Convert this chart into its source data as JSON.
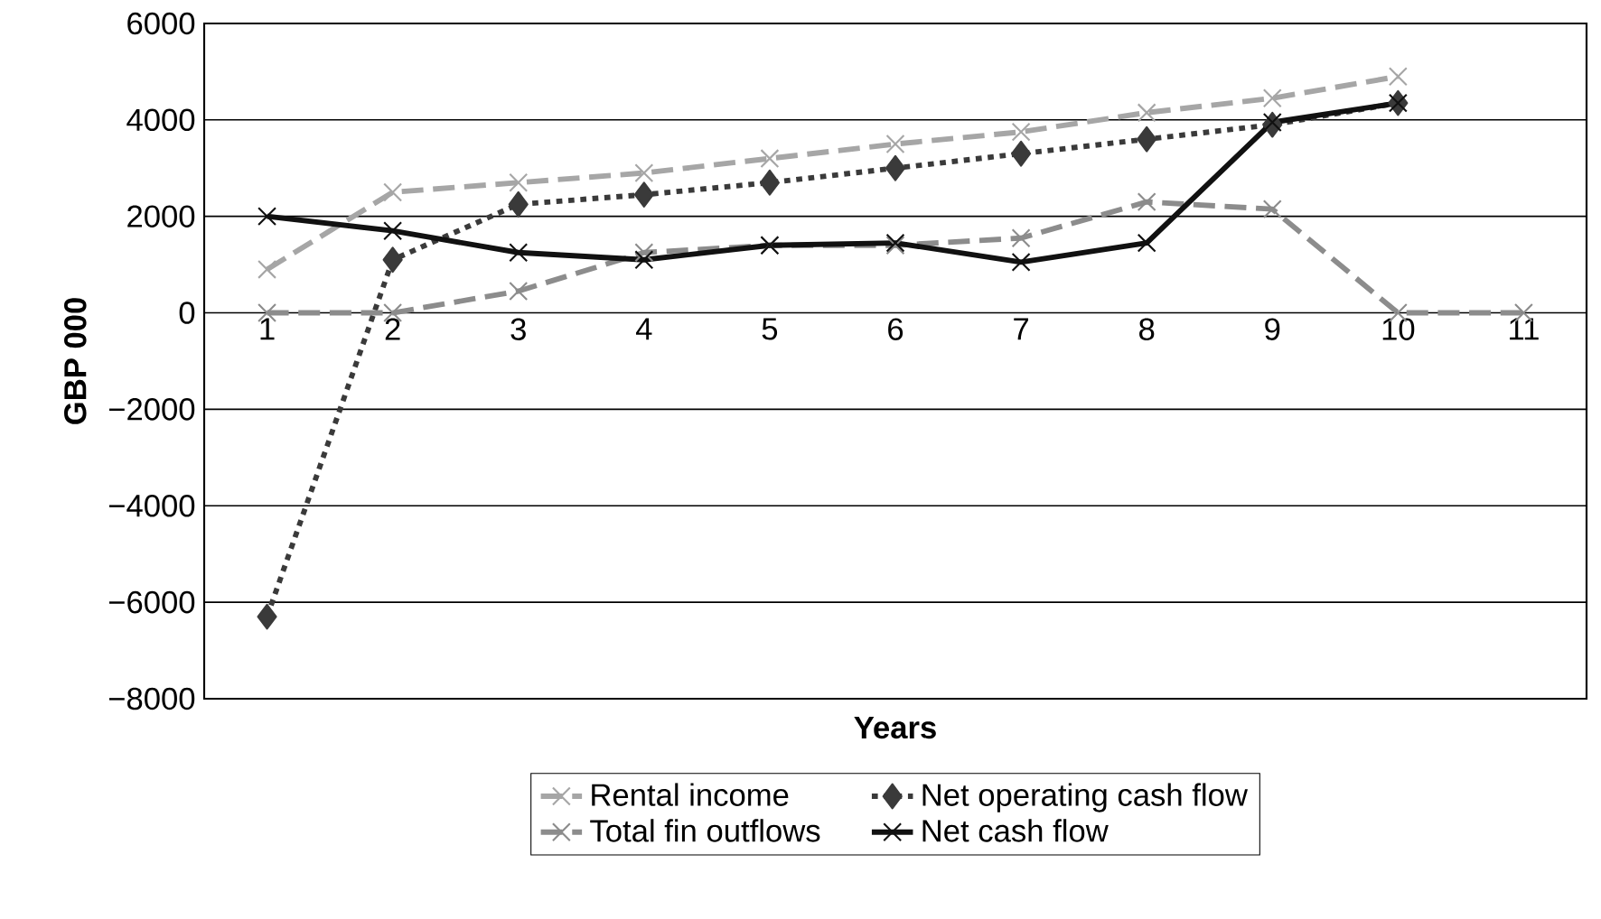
{
  "chart_data": {
    "type": "line",
    "xlabel": "Years",
    "ylabel": "GBP 000",
    "categories": [
      "1",
      "2",
      "3",
      "4",
      "5",
      "6",
      "7",
      "8",
      "9",
      "10",
      "11"
    ],
    "ylim": [
      -8000,
      6000
    ],
    "yticks": [
      {
        "value": -8000,
        "label": "−8000"
      },
      {
        "value": -6000,
        "label": "−6000"
      },
      {
        "value": -4000,
        "label": "−4000"
      },
      {
        "value": -2000,
        "label": "−2000"
      },
      0,
      2000,
      4000,
      6000
    ],
    "grid": "y",
    "legend": "bottom",
    "series": [
      {
        "name": "Rental income",
        "color": "#a6a6a6",
        "line_style": "dashed",
        "marker": "cross",
        "values": [
          900,
          2500,
          2700,
          2900,
          3200,
          3500,
          3750,
          4150,
          4450,
          4900,
          null
        ]
      },
      {
        "name": "Net operating cash flow",
        "color": "#3a3a3a",
        "line_style": "dotted",
        "marker": "diamond",
        "values": [
          -6300,
          1100,
          2250,
          2450,
          2700,
          3000,
          3300,
          3600,
          3900,
          4350,
          null
        ]
      },
      {
        "name": "Total fin outflows",
        "color": "#8c8c8c",
        "line_style": "dashed",
        "marker": "cross",
        "values": [
          0,
          0,
          450,
          1250,
          1400,
          1400,
          1550,
          2300,
          2150,
          0,
          0
        ]
      },
      {
        "name": "Net cash flow",
        "color": "#111111",
        "line_style": "solid",
        "marker": "cross",
        "values": [
          2000,
          1700,
          1250,
          1100,
          1400,
          1450,
          1050,
          1450,
          3950,
          4350,
          null
        ]
      }
    ]
  }
}
